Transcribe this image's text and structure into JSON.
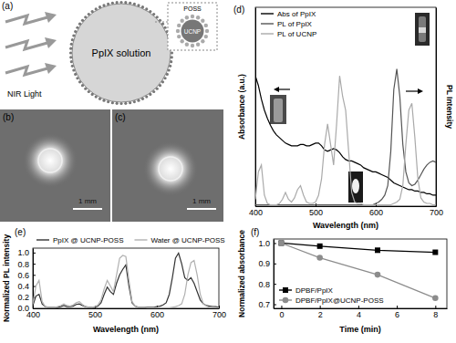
{
  "chart_data": [
    {
      "type": "line",
      "annotations": [
        "(d)"
      ],
      "x_label": "Wavelength (nm)",
      "y_label": "Absorbance (a.u.)",
      "y2_label": "PL Intensity",
      "x": [
        400,
        405,
        410,
        415,
        420,
        425,
        430,
        435,
        440,
        445,
        450,
        455,
        460,
        465,
        470,
        475,
        480,
        485,
        490,
        495,
        500,
        505,
        510,
        515,
        520,
        525,
        530,
        535,
        540,
        545,
        550,
        555,
        560,
        565,
        570,
        575,
        580,
        585,
        590,
        595,
        600,
        605,
        610,
        615,
        620,
        625,
        630,
        635,
        640,
        645,
        650,
        655,
        660,
        665,
        670,
        675,
        680,
        685,
        690,
        695,
        700
      ],
      "xlim": [
        400,
        700
      ],
      "xticks": [
        400,
        500,
        600,
        700
      ],
      "ylim": [
        0,
        1.45
      ],
      "y2lim": [
        0,
        1.45
      ],
      "tick_labels": "x",
      "legend": "upper left",
      "series": [
        {
          "name": "Abs of PpIX",
          "color": "#000000",
          "values": [
            0.95,
            0.88,
            0.78,
            0.7,
            0.64,
            0.59,
            0.55,
            0.52,
            0.5,
            0.48,
            0.46,
            0.45,
            0.44,
            0.44,
            0.44,
            0.45,
            0.45,
            0.44,
            0.44,
            0.45,
            0.46,
            0.46,
            0.44,
            0.41,
            0.4,
            0.41,
            0.42,
            0.41,
            0.39,
            0.36,
            0.34,
            0.33,
            0.33,
            0.32,
            0.31,
            0.3,
            0.28,
            0.27,
            0.26,
            0.25,
            0.25,
            0.24,
            0.23,
            0.22,
            0.21,
            0.19,
            0.17,
            0.16,
            0.15,
            0.14,
            0.13,
            0.12,
            0.12,
            0.11,
            0.11,
            0.1,
            0.1,
            0.09,
            0.09,
            0.08,
            0.08
          ]
        },
        {
          "name": "PL of PpIX",
          "color": "#555555",
          "axis": "y2",
          "values": [
            0.01,
            0.01,
            0.01,
            0.01,
            0.01,
            0.01,
            0.01,
            0.01,
            0.01,
            0.01,
            0.01,
            0.01,
            0.01,
            0.01,
            0.01,
            0.01,
            0.01,
            0.01,
            0.01,
            0.01,
            0.01,
            0.01,
            0.01,
            0.01,
            0.01,
            0.01,
            0.01,
            0.01,
            0.01,
            0.01,
            0.01,
            0.01,
            0.01,
            0.01,
            0.01,
            0.01,
            0.01,
            0.01,
            0.01,
            0.01,
            0.02,
            0.03,
            0.05,
            0.08,
            0.15,
            0.4,
            0.85,
            1.0,
            0.8,
            0.45,
            0.25,
            0.17,
            0.15,
            0.16,
            0.19,
            0.23,
            0.27,
            0.3,
            0.32,
            0.33,
            0.32
          ]
        },
        {
          "name": "PL of UCNP",
          "color": "#aaaaaa",
          "axis": "y2",
          "values": [
            0.05,
            0.25,
            0.3,
            0.08,
            0.02,
            0.01,
            0.01,
            0.01,
            0.02,
            0.05,
            0.1,
            0.05,
            0.03,
            0.06,
            0.12,
            0.15,
            0.08,
            0.03,
            0.02,
            0.02,
            0.03,
            0.08,
            0.2,
            0.45,
            0.6,
            0.45,
            0.3,
            0.6,
            0.95,
            0.8,
            0.7,
            0.4,
            0.1,
            0.03,
            0.02,
            0.02,
            0.01,
            0.01,
            0.01,
            0.01,
            0.01,
            0.01,
            0.01,
            0.01,
            0.01,
            0.01,
            0.02,
            0.03,
            0.05,
            0.15,
            0.45,
            0.7,
            0.75,
            0.5,
            0.2,
            0.06,
            0.03,
            0.02,
            0.02,
            0.01,
            0.01
          ]
        }
      ]
    },
    {
      "type": "line",
      "annotations": [
        "(e)"
      ],
      "x_label": "Wavelength (nm)",
      "y_label": "Normalized PL intensity",
      "x": [
        400,
        405,
        410,
        415,
        420,
        425,
        430,
        435,
        440,
        445,
        450,
        455,
        460,
        465,
        470,
        475,
        480,
        485,
        490,
        495,
        500,
        505,
        510,
        515,
        520,
        525,
        530,
        535,
        540,
        545,
        550,
        555,
        560,
        565,
        570,
        575,
        580,
        585,
        590,
        595,
        600,
        605,
        610,
        615,
        620,
        625,
        630,
        635,
        640,
        645,
        650,
        655,
        660,
        665,
        670,
        675,
        680,
        685,
        690,
        695,
        700
      ],
      "xlim": [
        400,
        700
      ],
      "xticks": [
        400,
        500,
        600,
        700
      ],
      "ylim": [
        0,
        1.08
      ],
      "yticks": [
        {
          "value": 0,
          "label": "0.0"
        },
        0.2,
        0.4,
        0.6,
        0.8,
        {
          "value": 1,
          "label": "1.0"
        }
      ],
      "legend": "top",
      "series": [
        {
          "name": "PpIX @ UCNP-POSS",
          "color": "#333333",
          "values": [
            0.05,
            0.22,
            0.25,
            0.08,
            0.03,
            0.02,
            0.02,
            0.02,
            0.02,
            0.03,
            0.05,
            0.03,
            0.03,
            0.04,
            0.07,
            0.08,
            0.05,
            0.03,
            0.02,
            0.02,
            0.02,
            0.04,
            0.1,
            0.25,
            0.38,
            0.3,
            0.25,
            0.45,
            0.6,
            0.7,
            0.78,
            0.4,
            0.1,
            0.04,
            0.02,
            0.02,
            0.02,
            0.02,
            0.02,
            0.02,
            0.03,
            0.04,
            0.06,
            0.1,
            0.25,
            0.55,
            0.9,
            0.99,
            0.8,
            0.55,
            0.5,
            0.55,
            0.45,
            0.3,
            0.15,
            0.08,
            0.05,
            0.04,
            0.03,
            0.03,
            0.02
          ]
        },
        {
          "name": "Water @ UCNP-POSS",
          "color": "#b0b0b0",
          "values": [
            0.08,
            0.4,
            0.5,
            0.12,
            0.03,
            0.02,
            0.02,
            0.02,
            0.03,
            0.05,
            0.08,
            0.05,
            0.04,
            0.06,
            0.1,
            0.12,
            0.07,
            0.03,
            0.02,
            0.02,
            0.03,
            0.06,
            0.15,
            0.35,
            0.5,
            0.4,
            0.3,
            0.6,
            0.9,
            0.95,
            0.93,
            0.5,
            0.12,
            0.04,
            0.02,
            0.02,
            0.02,
            0.01,
            0.01,
            0.01,
            0.01,
            0.01,
            0.01,
            0.01,
            0.01,
            0.02,
            0.03,
            0.05,
            0.08,
            0.25,
            0.6,
            0.82,
            0.86,
            0.6,
            0.25,
            0.08,
            0.04,
            0.02,
            0.02,
            0.01,
            0.01
          ]
        }
      ]
    },
    {
      "type": "line",
      "annotations": [
        "(f)"
      ],
      "x_label": "Time (min)",
      "y_label": "Normalized absorbance",
      "x": [
        0,
        2,
        5,
        8
      ],
      "xlim": [
        -0.4,
        8.6
      ],
      "xticks": [
        0,
        2,
        4,
        6,
        8
      ],
      "ylim": [
        0.68,
        1.02
      ],
      "yticks": [
        0.7,
        0.8,
        0.9,
        {
          "value": 1,
          "label": "1.0"
        }
      ],
      "legend": "lower left",
      "series": [
        {
          "name": "DPBF/PpIX",
          "color": "#000000",
          "marker": "square",
          "line_style": "solid",
          "values": [
            1.0,
            0.985,
            0.965,
            0.955
          ]
        },
        {
          "name": "DPBF/PpIX@UCNP-POSS",
          "color": "#8c8c8c",
          "marker": "circle",
          "line_style": "solid",
          "values": [
            1.0,
            0.928,
            0.845,
            0.73
          ]
        }
      ]
    }
  ],
  "diagram": {
    "panel_a": {
      "label": "(a)",
      "light": "NIR Light",
      "solution": "PpIX solution",
      "shell": "POSS",
      "core": "UCNP"
    },
    "panel_b": {
      "label": "(b)",
      "scale_bar": "1 mm"
    },
    "panel_c": {
      "label": "(c)",
      "scale_bar": "1 mm"
    }
  }
}
